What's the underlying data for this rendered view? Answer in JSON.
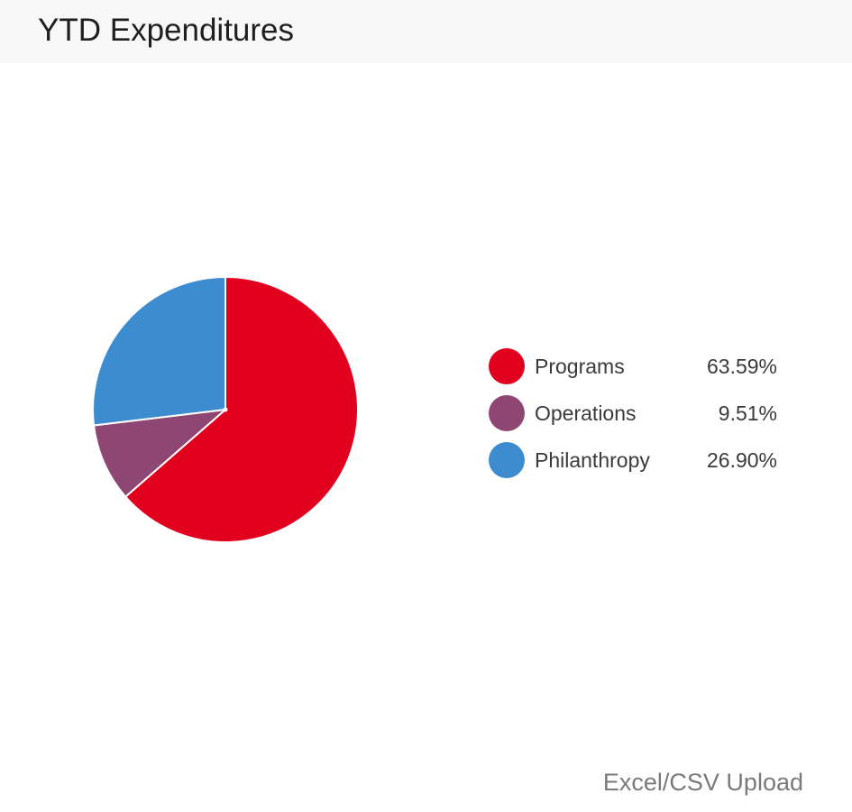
{
  "header": {
    "title": "YTD Expenditures"
  },
  "chart_data": {
    "type": "pie",
    "title": "",
    "categories": [
      "Programs",
      "Operations",
      "Philanthropy"
    ],
    "values": [
      63.59,
      9.51,
      26.9
    ],
    "value_labels": [
      "63.59%",
      "9.51%",
      "26.90%"
    ],
    "colors": [
      "#e2001f",
      "#8e4672",
      "#3e8cd0"
    ],
    "start_angle_deg": 0,
    "direction": "clockwise",
    "legend": "right"
  },
  "footer": {
    "link_label": "Excel/CSV Upload"
  }
}
